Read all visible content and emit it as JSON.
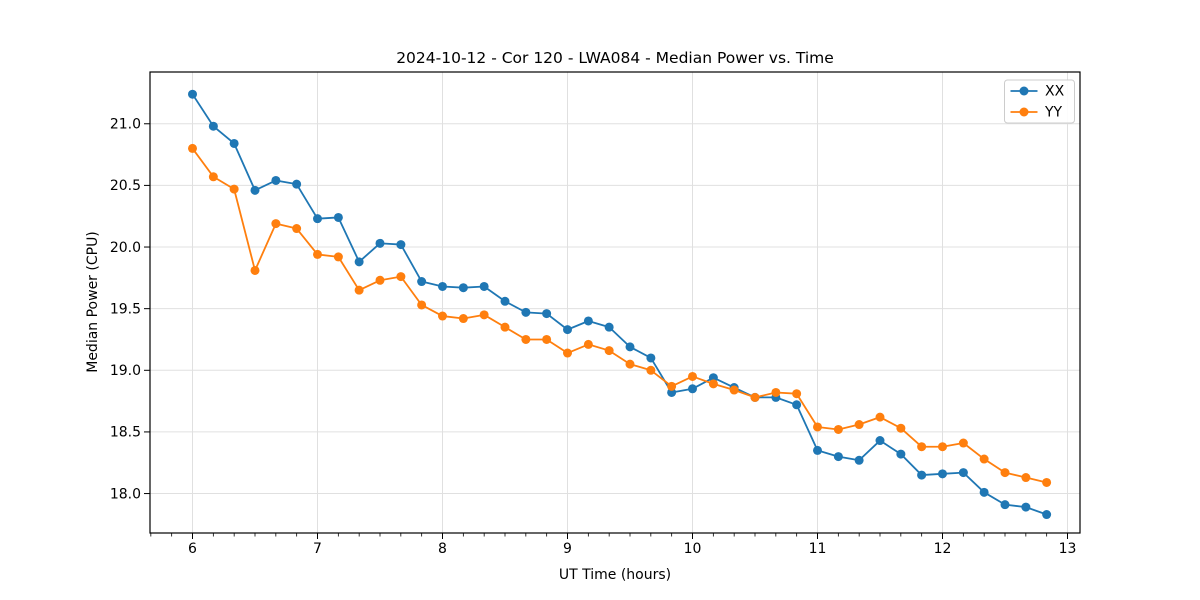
{
  "chart_data": {
    "type": "line",
    "title": "2024-10-12 - Cor 120 - LWA084 - Median Power vs. Time",
    "xlabel": "UT Time (hours)",
    "ylabel": "Median Power (CPU)",
    "xlim": [
      5.66,
      13.1
    ],
    "ylim": [
      17.68,
      21.42
    ],
    "xticks": [
      6,
      7,
      8,
      9,
      10,
      11,
      12,
      13
    ],
    "yticks": [
      18.0,
      18.5,
      19.0,
      19.5,
      20.0,
      20.5,
      21.0
    ],
    "x_minor_step_hours": 0.1667,
    "grid": true,
    "grid_color": "#e0e0e0",
    "legend_position": "upper right",
    "x": [
      6.0,
      6.167,
      6.333,
      6.5,
      6.667,
      6.833,
      7.0,
      7.167,
      7.333,
      7.5,
      7.667,
      7.833,
      8.0,
      8.167,
      8.333,
      8.5,
      8.667,
      8.833,
      9.0,
      9.167,
      9.333,
      9.5,
      9.667,
      9.833,
      10.0,
      10.167,
      10.333,
      10.5,
      10.667,
      10.833,
      11.0,
      11.167,
      11.333,
      11.5,
      11.667,
      11.833,
      12.0,
      12.167,
      12.333,
      12.5,
      12.667,
      12.833
    ],
    "series": [
      {
        "name": "XX",
        "color": "#1f77b4",
        "values": [
          21.24,
          20.98,
          20.84,
          20.46,
          20.54,
          20.51,
          20.23,
          20.24,
          19.88,
          20.03,
          20.02,
          19.72,
          19.68,
          19.67,
          19.68,
          19.56,
          19.47,
          19.46,
          19.33,
          19.4,
          19.35,
          19.19,
          19.1,
          18.82,
          18.85,
          18.94,
          18.86,
          18.78,
          18.78,
          18.72,
          18.35,
          18.3,
          18.27,
          18.43,
          18.32,
          18.15,
          18.16,
          18.17,
          18.01,
          17.91,
          17.89,
          17.83
        ]
      },
      {
        "name": "YY",
        "color": "#ff7f0e",
        "values": [
          20.8,
          20.57,
          20.47,
          19.81,
          20.19,
          20.15,
          19.94,
          19.92,
          19.65,
          19.73,
          19.76,
          19.53,
          19.44,
          19.42,
          19.45,
          19.35,
          19.25,
          19.25,
          19.14,
          19.21,
          19.16,
          19.05,
          19.0,
          18.87,
          18.95,
          18.89,
          18.84,
          18.78,
          18.82,
          18.81,
          18.54,
          18.52,
          18.56,
          18.62,
          18.53,
          18.38,
          18.38,
          18.41,
          18.28,
          18.17,
          18.13,
          18.09
        ]
      }
    ]
  }
}
